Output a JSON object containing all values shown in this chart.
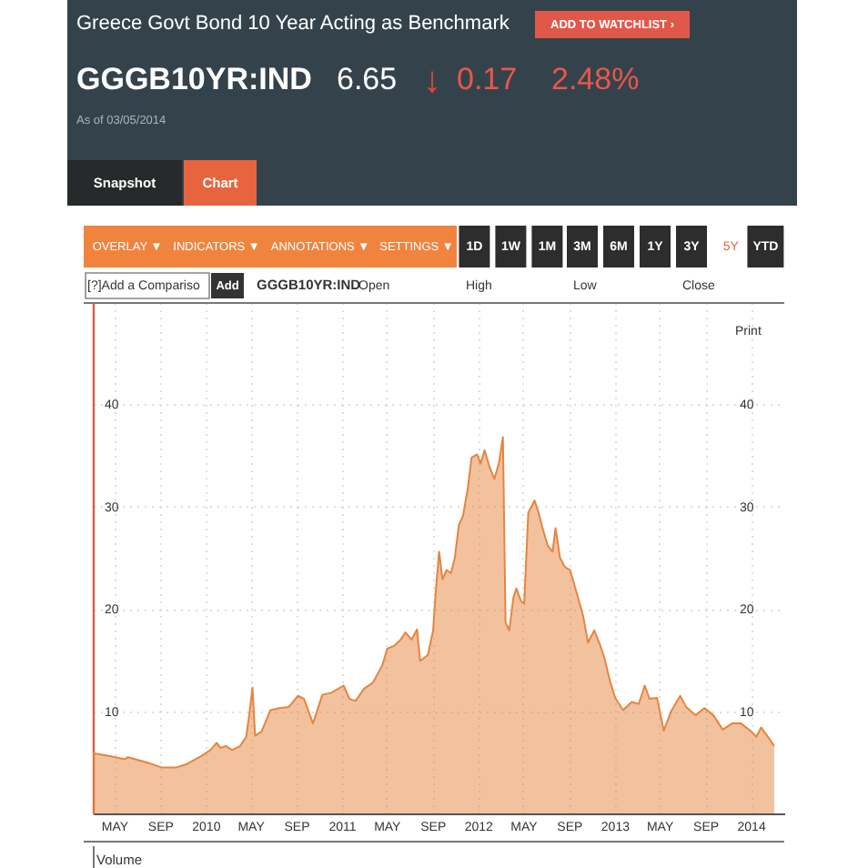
{
  "chart_data": {
    "type": "area",
    "title": "Greece Govt Bond 10 Year Acting as Benchmark",
    "subtitle": "GGGB10YR:IND",
    "annotations": [
      "ADD TO WATCHLIST ›",
      "6.65",
      "↓",
      "0.17",
      "2.48%",
      "As of 03/05/2014",
      "Snapshot",
      "Chart",
      "OVERLAY ▼",
      "INDICATORS ▼",
      "ANNOTATIONS ▼",
      "SETTINGS ▼",
      "1D",
      "1W",
      "1M",
      "3M",
      "6M",
      "1Y",
      "3Y",
      "5Y",
      "YTD",
      "[?]Add a Compariso",
      "Add",
      "GGGB10YR:IND",
      "Open",
      "High",
      "Low",
      "Close",
      "Print",
      "Volume"
    ],
    "x": [
      "2009-03-05",
      "2009-04-20",
      "2009-05-30",
      "2009-06-07",
      "2009-07-26",
      "2009-09-05",
      "2009-10-16",
      "2009-11-10",
      "2009-12-20",
      "2010-01-14",
      "2010-01-31",
      "2010-02-10",
      "2010-02-25",
      "2010-03-13",
      "2010-04-04",
      "2010-04-20",
      "2010-04-28",
      "2010-05-07",
      "2010-05-14",
      "2010-05-31",
      "2010-06-24",
      "2010-07-18",
      "2010-08-12",
      "2010-09-06",
      "2010-09-22",
      "2010-10-16",
      "2010-11-10",
      "2010-12-04",
      "2011-01-06",
      "2011-01-22",
      "2011-02-07",
      "2011-03-02",
      "2011-03-26",
      "2011-04-20",
      "2011-05-03",
      "2011-05-22",
      "2011-06-08",
      "2011-06-21",
      "2011-07-07",
      "2011-07-22",
      "2011-07-30",
      "2011-08-20",
      "2011-09-03",
      "2011-09-10",
      "2011-09-19",
      "2011-09-28",
      "2011-10-09",
      "2011-10-21",
      "2011-10-31",
      "2011-11-11",
      "2011-11-22",
      "2011-12-05",
      "2011-12-15",
      "2011-12-30",
      "2012-01-08",
      "2012-01-19",
      "2012-02-01",
      "2012-02-14",
      "2012-02-26",
      "2012-03-08",
      "2012-03-15",
      "2012-03-25",
      "2012-04-05",
      "2012-04-13",
      "2012-04-25",
      "2012-05-04",
      "2012-05-15",
      "2012-06-01",
      "2012-06-14",
      "2012-06-22",
      "2012-07-06",
      "2012-07-19",
      "2012-07-27",
      "2012-08-08",
      "2012-08-21",
      "2012-09-04",
      "2012-09-23",
      "2012-10-09",
      "2012-10-22",
      "2012-11-08",
      "2012-11-24",
      "2012-12-05",
      "2012-12-21",
      "2013-01-03",
      "2013-01-24",
      "2013-02-16",
      "2013-03-07",
      "2013-03-23",
      "2013-04-05",
      "2013-04-25",
      "2013-05-13",
      "2013-06-02",
      "2013-06-26",
      "2013-07-12",
      "2013-08-06",
      "2013-08-30",
      "2013-09-23",
      "2013-10-18",
      "2013-11-12",
      "2013-12-06",
      "2013-12-31",
      "2014-01-16",
      "2014-01-29",
      "2014-02-18",
      "2014-03-05"
    ],
    "series": [
      {
        "color": "#e5853f",
        "values": [
          5.9,
          5.6,
          5.3,
          5.5,
          5.0,
          4.5,
          4.5,
          4.8,
          5.6,
          6.2,
          6.9,
          6.4,
          6.6,
          6.2,
          6.6,
          7.5,
          9.6,
          12.3,
          7.6,
          8.0,
          10.1,
          10.3,
          10.4,
          11.5,
          11.2,
          8.8,
          11.6,
          11.8,
          12.5,
          11.2,
          11.0,
          12.2,
          12.8,
          14.5,
          16.1,
          16.4,
          17.0,
          17.7,
          17.0,
          18.0,
          14.9,
          15.5,
          17.9,
          21.7,
          25.6,
          22.9,
          23.8,
          23.5,
          25.0,
          28.2,
          29.1,
          31.8,
          34.8,
          35.1,
          34.2,
          35.5,
          33.9,
          32.7,
          34.2,
          36.8,
          18.7,
          17.9,
          21.1,
          22.0,
          20.8,
          20.5,
          29.4,
          30.6,
          29.1,
          27.9,
          26.2,
          25.6,
          27.9,
          25.0,
          24.1,
          23.8,
          21.4,
          19.3,
          16.7,
          17.9,
          16.4,
          15.2,
          12.8,
          11.3,
          10.1,
          10.9,
          10.7,
          12.5,
          11.2,
          11.3,
          8.1,
          10.0,
          11.5,
          10.4,
          9.6,
          10.3,
          9.6,
          8.2,
          8.8,
          8.8,
          8.1,
          7.5,
          8.4,
          7.4,
          6.6
        ]
      }
    ],
    "xlim": [
      "2009-03-05",
      "2014-04-01"
    ],
    "xticks": [
      {
        "value": "2009-05-01",
        "label": "MAY"
      },
      {
        "value": "2009-09-01",
        "label": "SEP"
      },
      {
        "value": "2010-01-01",
        "label": "2010"
      },
      {
        "value": "2010-05-01",
        "label": "MAY"
      },
      {
        "value": "2010-09-01",
        "label": "SEP"
      },
      {
        "value": "2011-01-01",
        "label": "2011"
      },
      {
        "value": "2011-05-01",
        "label": "MAY"
      },
      {
        "value": "2011-09-01",
        "label": "SEP"
      },
      {
        "value": "2012-01-01",
        "label": "2012"
      },
      {
        "value": "2012-05-01",
        "label": "MAY"
      },
      {
        "value": "2012-09-01",
        "label": "SEP"
      },
      {
        "value": "2013-01-01",
        "label": "2013"
      },
      {
        "value": "2013-05-01",
        "label": "MAY"
      },
      {
        "value": "2013-09-01",
        "label": "SEP"
      },
      {
        "value": "2014-01-01",
        "label": "2014"
      }
    ],
    "ylim": [
      0,
      50
    ],
    "yticks": [
      10,
      20,
      30,
      40
    ],
    "y2lim": [
      0,
      50
    ],
    "y2ticks": [
      10,
      20,
      30,
      40
    ],
    "grid": true
  }
}
